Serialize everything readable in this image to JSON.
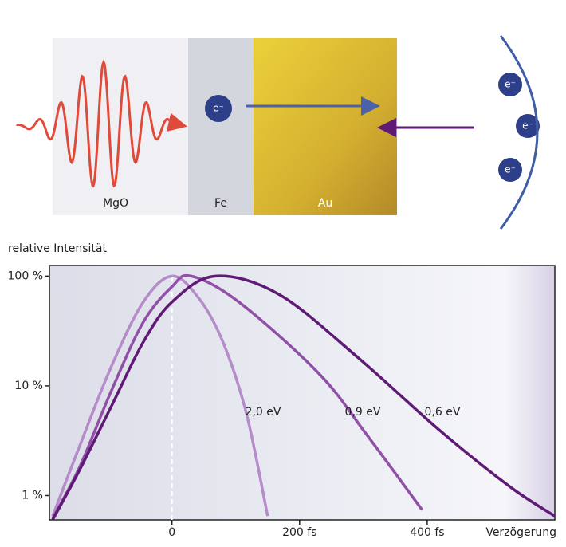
{
  "diagram": {
    "layers": [
      "MgO",
      "Fe",
      "Au"
    ],
    "electrons": [
      "e⁻",
      "e⁻",
      "e⁻",
      "e⁻"
    ]
  },
  "chart_data": {
    "type": "line",
    "y_label": "relative Intensität",
    "x_label": "Verzögerung",
    "log_y": true,
    "xlim": [
      -192,
      600
    ],
    "xticks": [
      0,
      {
        "value": 200,
        "label": "200 fs"
      },
      {
        "value": 400,
        "label": "400 fs"
      }
    ],
    "ylim": [
      0.6,
      125
    ],
    "yticks": [
      {
        "value": 1,
        "label": "1 %"
      },
      {
        "value": 10,
        "label": "10 %"
      },
      {
        "value": 100,
        "label": "100 %"
      }
    ],
    "series": [
      {
        "name": "2,0 eV",
        "color": "#b58bc9",
        "x": [
          -187,
          -145,
          -95,
          -45,
          0,
          42,
          80,
          117,
          150
        ],
        "values": [
          0.65,
          2.8,
          15,
          58,
          100,
          63,
          25,
          5.5,
          0.65
        ]
      },
      {
        "name": "0,9 eV",
        "color": "#9150a8",
        "x": [
          -187,
          -145,
          -95,
          -45,
          0,
          30,
          105,
          230,
          305,
          392
        ],
        "values": [
          0.62,
          1.8,
          9,
          38,
          80,
          100,
          58,
          13,
          3.6,
          0.74
        ]
      },
      {
        "name": "0,6 eV",
        "color": "#5e1a74",
        "x": [
          -187,
          -145,
          -95,
          -45,
          0,
          68,
          168,
          292,
          418,
          530,
          600
        ],
        "values": [
          0.6,
          1.7,
          6.5,
          25,
          58,
          100,
          68,
          18,
          4,
          1.2,
          0.65
        ]
      }
    ]
  }
}
